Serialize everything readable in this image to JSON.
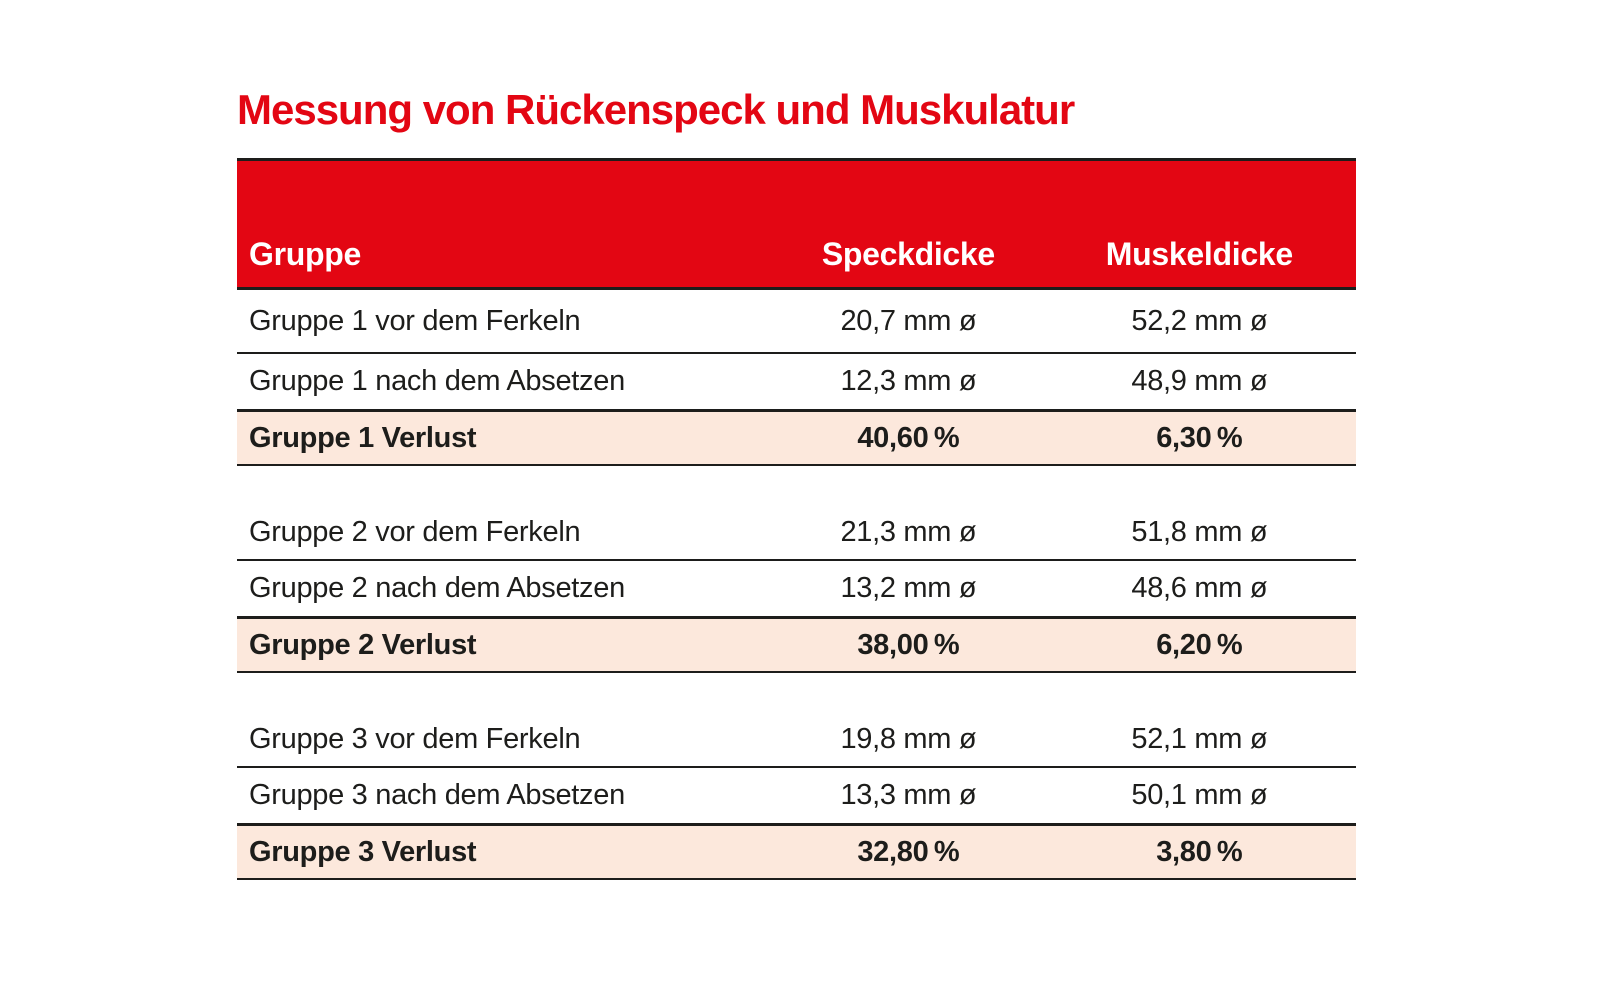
{
  "title": "Messung von Rückenspeck und Muskulatur",
  "colors": {
    "title-red": "#e30613",
    "header-red": "#e30613",
    "header-text": "#ffffff",
    "highlight-pink": "#fce8dc",
    "line": "#1d1d1b",
    "text": "#1d1d1b"
  },
  "chart_data": {
    "type": "table",
    "title": "Messung von Rückenspeck und Muskulatur",
    "columns": [
      "Gruppe",
      "Speckdicke",
      "Muskeldicke"
    ],
    "legend_position": "none",
    "grid": "horizontal-rules",
    "rows": [
      {
        "gruppe": "Gruppe 1 vor dem Ferkeln",
        "speckdicke": "20,7 mm ø",
        "muskeldicke": "52,2 mm ø",
        "highlight": false
      },
      {
        "gruppe": "Gruppe 1 nach dem Absetzen",
        "speckdicke": "12,3 mm ø",
        "muskeldicke": "48,9 mm ø",
        "highlight": false
      },
      {
        "gruppe": "Gruppe 1 Verlust",
        "speckdicke": "40,60 %",
        "muskeldicke": "6,30 %",
        "highlight": true
      },
      {
        "gruppe": "Gruppe 2 vor dem Ferkeln",
        "speckdicke": "21,3 mm ø",
        "muskeldicke": "51,8 mm ø",
        "highlight": false
      },
      {
        "gruppe": "Gruppe 2 nach dem Absetzen",
        "speckdicke": "13,2 mm ø",
        "muskeldicke": "48,6 mm ø",
        "highlight": false
      },
      {
        "gruppe": "Gruppe 2 Verlust",
        "speckdicke": "38,00 %",
        "muskeldicke": "6,20 %",
        "highlight": true
      },
      {
        "gruppe": "Gruppe 3 vor dem Ferkeln",
        "speckdicke": "19,8 mm ø",
        "muskeldicke": "52,1 mm ø",
        "highlight": false
      },
      {
        "gruppe": "Gruppe 3 nach dem Absetzen",
        "speckdicke": "13,3 mm ø",
        "muskeldicke": "50,1 mm ø",
        "highlight": false
      },
      {
        "gruppe": "Gruppe 3 Verlust",
        "speckdicke": "32,80 %",
        "muskeldicke": "3,80 %",
        "highlight": true
      }
    ]
  }
}
